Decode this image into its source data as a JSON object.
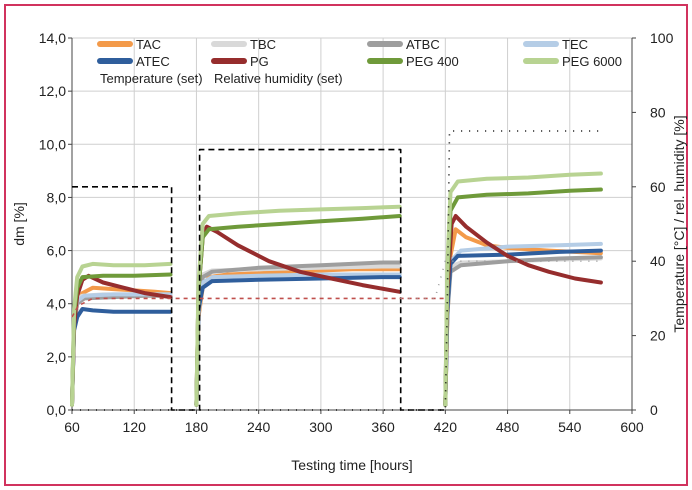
{
  "chart_data": {
    "type": "line",
    "title": "",
    "xlabel": "Testing time [hours]",
    "ylabel": "dm [%]",
    "y2label": "Temperature [°C] / rel. humidity [%]",
    "xlim": [
      60,
      600
    ],
    "ylim": [
      0,
      14
    ],
    "y2lim": [
      0,
      100
    ],
    "xticks": [
      "60",
      "120",
      "180",
      "240",
      "300",
      "360",
      "420",
      "480",
      "540",
      "600"
    ],
    "yticks": [
      "0,0",
      "2,0",
      "4,0",
      "6,0",
      "8,0",
      "10,0",
      "12,0",
      "14,0"
    ],
    "y2ticks": [
      "0",
      "20",
      "40",
      "60",
      "80",
      "100"
    ],
    "grid": true,
    "legend_position": "top",
    "frame_color": "#d1335e",
    "series": [
      {
        "name": "TAC",
        "color": "#f39a4a",
        "axis": "left",
        "segments": [
          [
            [
              60,
              0.2
            ],
            [
              62,
              3.2
            ],
            [
              65,
              4.0
            ],
            [
              70,
              4.4
            ],
            [
              80,
              4.6
            ],
            [
              100,
              4.55
            ],
            [
              120,
              4.5
            ],
            [
              140,
              4.45
            ],
            [
              155,
              4.4
            ]
          ],
          [
            [
              180,
              0.2
            ],
            [
              182,
              3.5
            ],
            [
              186,
              4.6
            ],
            [
              192,
              5.0
            ],
            [
              210,
              5.1
            ],
            [
              240,
              5.15
            ],
            [
              270,
              5.2
            ],
            [
              300,
              5.25
            ],
            [
              330,
              5.3
            ],
            [
              360,
              5.3
            ],
            [
              376,
              5.3
            ]
          ],
          [
            [
              420,
              0.2
            ],
            [
              422,
              3.5
            ],
            [
              425,
              5.8
            ],
            [
              430,
              6.8
            ],
            [
              440,
              6.5
            ],
            [
              460,
              6.2
            ],
            [
              480,
              6.1
            ],
            [
              520,
              6.0
            ],
            [
              570,
              5.9
            ]
          ]
        ]
      },
      {
        "name": "TBC",
        "color": "#d9d9d9",
        "axis": "left",
        "segments": [
          [
            [
              60,
              0.2
            ],
            [
              62,
              3.4
            ],
            [
              65,
              4.2
            ],
            [
              70,
              4.3
            ],
            [
              90,
              4.35
            ],
            [
              120,
              4.35
            ],
            [
              155,
              4.35
            ]
          ],
          [
            [
              180,
              0.2
            ],
            [
              182,
              3.8
            ],
            [
              186,
              5.1
            ],
            [
              195,
              5.25
            ],
            [
              240,
              5.3
            ],
            [
              300,
              5.35
            ],
            [
              360,
              5.4
            ],
            [
              376,
              5.4
            ]
          ],
          [
            [
              420,
              0.2
            ],
            [
              422,
              3.8
            ],
            [
              425,
              5.4
            ],
            [
              435,
              5.55
            ],
            [
              480,
              5.6
            ],
            [
              520,
              5.65
            ],
            [
              570,
              5.7
            ]
          ]
        ]
      },
      {
        "name": "ATBC",
        "color": "#9e9e9e",
        "axis": "left",
        "segments": [
          [
            [
              60,
              0.2
            ],
            [
              62,
              3.2
            ],
            [
              65,
              4.0
            ],
            [
              72,
              4.2
            ],
            [
              100,
              4.25
            ],
            [
              130,
              4.3
            ],
            [
              155,
              4.3
            ]
          ],
          [
            [
              180,
              0.2
            ],
            [
              182,
              3.8
            ],
            [
              186,
              5.0
            ],
            [
              195,
              5.2
            ],
            [
              240,
              5.35
            ],
            [
              300,
              5.45
            ],
            [
              360,
              5.55
            ],
            [
              376,
              5.55
            ]
          ],
          [
            [
              420,
              0.2
            ],
            [
              422,
              3.6
            ],
            [
              425,
              5.2
            ],
            [
              435,
              5.45
            ],
            [
              480,
              5.6
            ],
            [
              530,
              5.7
            ],
            [
              570,
              5.75
            ]
          ]
        ]
      },
      {
        "name": "TEC",
        "color": "#b5cde6",
        "axis": "left",
        "segments": [
          [
            [
              60,
              0.2
            ],
            [
              62,
              3.3
            ],
            [
              65,
              4.1
            ],
            [
              72,
              4.3
            ],
            [
              100,
              4.35
            ],
            [
              130,
              4.35
            ],
            [
              155,
              4.35
            ]
          ],
          [
            [
              180,
              0.2
            ],
            [
              182,
              3.6
            ],
            [
              186,
              4.8
            ],
            [
              195,
              5.0
            ],
            [
              240,
              5.05
            ],
            [
              300,
              5.1
            ],
            [
              360,
              5.1
            ],
            [
              376,
              5.1
            ]
          ],
          [
            [
              420,
              0.2
            ],
            [
              422,
              3.8
            ],
            [
              425,
              5.6
            ],
            [
              435,
              6.0
            ],
            [
              480,
              6.15
            ],
            [
              530,
              6.2
            ],
            [
              570,
              6.25
            ]
          ]
        ]
      },
      {
        "name": "ATEC",
        "color": "#2f5e9c",
        "axis": "left",
        "segments": [
          [
            [
              60,
              0.2
            ],
            [
              62,
              3.0
            ],
            [
              65,
              3.5
            ],
            [
              70,
              3.8
            ],
            [
              80,
              3.75
            ],
            [
              100,
              3.7
            ],
            [
              130,
              3.7
            ],
            [
              155,
              3.7
            ]
          ],
          [
            [
              180,
              0.2
            ],
            [
              182,
              3.8
            ],
            [
              186,
              4.6
            ],
            [
              195,
              4.85
            ],
            [
              240,
              4.9
            ],
            [
              300,
              4.95
            ],
            [
              360,
              5.0
            ],
            [
              376,
              5.0
            ]
          ],
          [
            [
              420,
              0.2
            ],
            [
              422,
              3.8
            ],
            [
              425,
              5.5
            ],
            [
              432,
              5.8
            ],
            [
              480,
              5.85
            ],
            [
              530,
              5.95
            ],
            [
              570,
              6.0
            ]
          ]
        ]
      },
      {
        "name": "PG",
        "color": "#962d2d",
        "axis": "left",
        "segments": [
          [
            [
              60,
              0.2
            ],
            [
              62,
              3.2
            ],
            [
              65,
              4.3
            ],
            [
              70,
              4.9
            ],
            [
              76,
              5.05
            ],
            [
              90,
              4.8
            ],
            [
              110,
              4.6
            ],
            [
              130,
              4.4
            ],
            [
              155,
              4.25
            ]
          ],
          [
            [
              180,
              0.2
            ],
            [
              182,
              4.5
            ],
            [
              186,
              6.5
            ],
            [
              190,
              6.9
            ],
            [
              200,
              6.7
            ],
            [
              220,
              6.2
            ],
            [
              250,
              5.6
            ],
            [
              280,
              5.2
            ],
            [
              310,
              4.95
            ],
            [
              340,
              4.7
            ],
            [
              376,
              4.45
            ]
          ],
          [
            [
              420,
              0.2
            ],
            [
              422,
              4.5
            ],
            [
              426,
              7.0
            ],
            [
              430,
              7.3
            ],
            [
              440,
              6.9
            ],
            [
              460,
              6.3
            ],
            [
              480,
              5.8
            ],
            [
              500,
              5.45
            ],
            [
              520,
              5.2
            ],
            [
              545,
              4.95
            ],
            [
              570,
              4.8
            ]
          ]
        ]
      },
      {
        "name": "PEG 400",
        "color": "#6f9a3a",
        "axis": "left",
        "segments": [
          [
            [
              60,
              0.2
            ],
            [
              62,
              3.6
            ],
            [
              65,
              4.6
            ],
            [
              70,
              5.0
            ],
            [
              90,
              5.05
            ],
            [
              120,
              5.05
            ],
            [
              155,
              5.1
            ]
          ],
          [
            [
              180,
              0.2
            ],
            [
              182,
              4.5
            ],
            [
              186,
              6.5
            ],
            [
              192,
              6.8
            ],
            [
              220,
              6.9
            ],
            [
              260,
              7.0
            ],
            [
              300,
              7.1
            ],
            [
              340,
              7.2
            ],
            [
              376,
              7.3
            ]
          ],
          [
            [
              420,
              0.2
            ],
            [
              422,
              5.0
            ],
            [
              425,
              7.5
            ],
            [
              432,
              8.0
            ],
            [
              460,
              8.1
            ],
            [
              500,
              8.15
            ],
            [
              540,
              8.25
            ],
            [
              570,
              8.3
            ]
          ]
        ]
      },
      {
        "name": "PEG 6000",
        "color": "#b8d392",
        "axis": "left",
        "segments": [
          [
            [
              60,
              0.2
            ],
            [
              62,
              3.8
            ],
            [
              65,
              5.0
            ],
            [
              70,
              5.4
            ],
            [
              80,
              5.5
            ],
            [
              100,
              5.45
            ],
            [
              130,
              5.45
            ],
            [
              155,
              5.5
            ]
          ],
          [
            [
              180,
              0.2
            ],
            [
              182,
              4.8
            ],
            [
              186,
              7.0
            ],
            [
              192,
              7.3
            ],
            [
              220,
              7.4
            ],
            [
              260,
              7.5
            ],
            [
              300,
              7.55
            ],
            [
              340,
              7.6
            ],
            [
              376,
              7.65
            ]
          ],
          [
            [
              420,
              0.2
            ],
            [
              422,
              5.5
            ],
            [
              425,
              8.2
            ],
            [
              432,
              8.6
            ],
            [
              460,
              8.7
            ],
            [
              500,
              8.75
            ],
            [
              540,
              8.85
            ],
            [
              570,
              8.9
            ]
          ]
        ]
      },
      {
        "name": "Temperature (set)",
        "color": "#000000",
        "axis": "right",
        "dash": "6,4",
        "segments": [
          [
            [
              60,
              60
            ],
            [
              156,
              60
            ],
            [
              156,
              0
            ],
            [
              183,
              0
            ],
            [
              183,
              70
            ],
            [
              377,
              70
            ],
            [
              377,
              0
            ],
            [
              420,
              0
            ]
          ]
        ]
      },
      {
        "name": "Relative humidity (set)",
        "color": "#c0504d",
        "axis": "right",
        "dash": "4,4",
        "segments": [
          [
            [
              60,
              25
            ],
            [
              66,
              28
            ],
            [
              80,
              30
            ],
            [
              156,
              30
            ],
            [
              180,
              30
            ],
            [
              377,
              30
            ],
            [
              420,
              30
            ]
          ]
        ]
      },
      {
        "name": "",
        "color": "#000000",
        "axis": "right",
        "dash": "1,7",
        "segments": [
          [
            [
              60,
              0
            ],
            [
              420,
              0
            ],
            [
              422,
              30
            ],
            [
              424,
              75
            ],
            [
              570,
              75
            ]
          ]
        ]
      },
      {
        "name": "",
        "color": "#9e9e9e",
        "axis": "right",
        "dash": "1,7",
        "segments": [
          [
            [
              377,
              30
            ],
            [
              410,
              30
            ],
            [
              420,
              40
            ],
            [
              570,
              40
            ]
          ]
        ]
      }
    ]
  }
}
